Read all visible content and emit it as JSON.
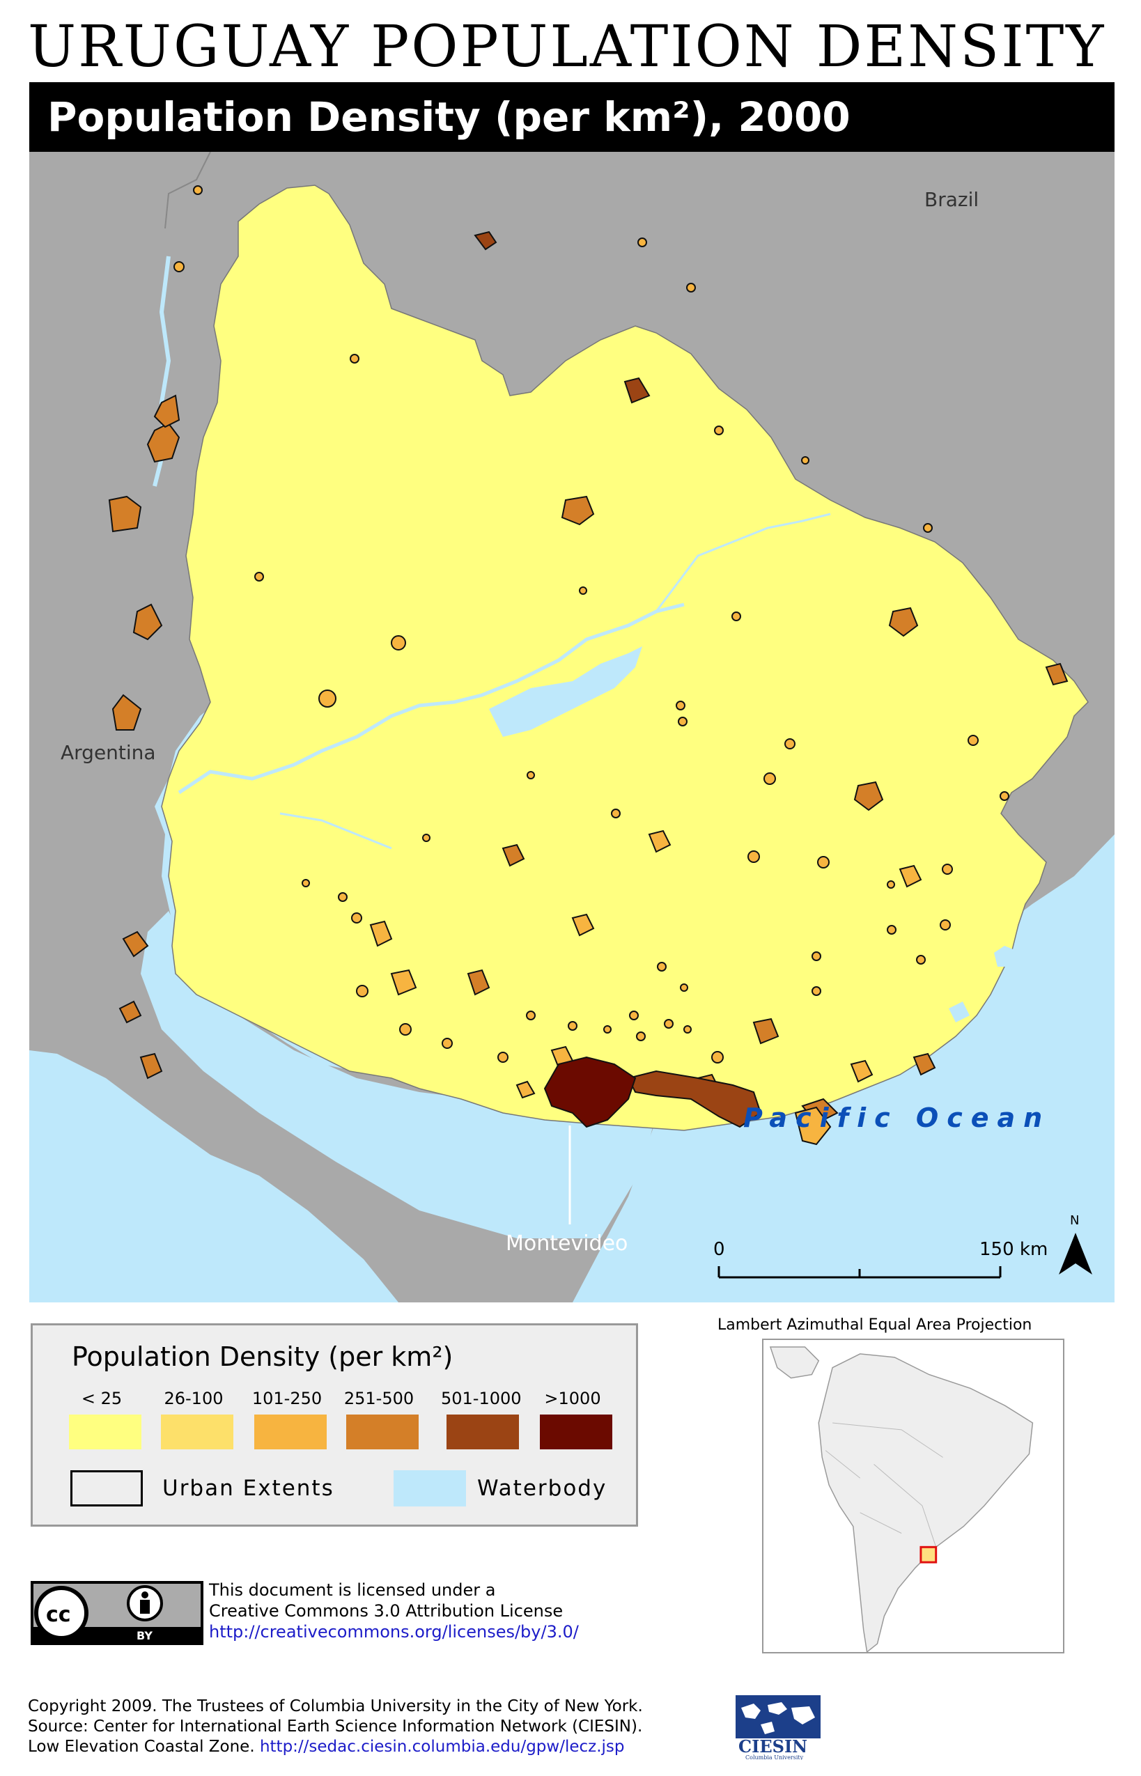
{
  "title": "URUGUAY POPULATION DENSITY",
  "subtitle": "Population Density (per km²), 2000",
  "map": {
    "labels": {
      "brazil": "Brazil",
      "argentina": "Argentina",
      "ocean": "Pacific Ocean",
      "montevideo": "Montevideo",
      "north": "N"
    },
    "scale": {
      "start": "0",
      "end": "150 km"
    },
    "colors": {
      "land_other": "#a9a9a9",
      "uruguay": "#ffff80",
      "water": "#bee8fb",
      "urban_low": "#d99036",
      "urban_high": "#9b4414",
      "urban_top": "#6b0a00"
    }
  },
  "legend": {
    "title": "Population Density (per km²)",
    "classes": [
      {
        "label": "< 25",
        "color": "#ffff80"
      },
      {
        "label": "26-100",
        "color": "#fde06a"
      },
      {
        "label": "101-250",
        "color": "#f7b440"
      },
      {
        "label": "251-500",
        "color": "#d47f28"
      },
      {
        "label": "501-1000",
        "color": "#9b4414"
      },
      {
        "label": ">1000",
        "color": "#6b0a00"
      }
    ],
    "urban_label": "Urban Extents",
    "water_label": "Waterbody"
  },
  "projection": "Lambert Azimuthal Equal Area Projection",
  "license": {
    "line1": "This document is licensed under a",
    "line2": "Creative Commons 3.0 Attribution License",
    "url": "http://creativecommons.org/licenses/by/3.0/",
    "badge_by": "BY"
  },
  "footer": {
    "line1": "Copyright 2009. The Trustees of Columbia University in the City of New York.",
    "line2": "Source: Center for International Earth Science Information Network (CIESIN).",
    "line3_text": "Low Elevation Coastal Zone.",
    "line3_url": "http://sedac.ciesin.columbia.edu/gpw/lecz.jsp",
    "logo_text": "CIESIN",
    "logo_sub": "Columbia University"
  }
}
